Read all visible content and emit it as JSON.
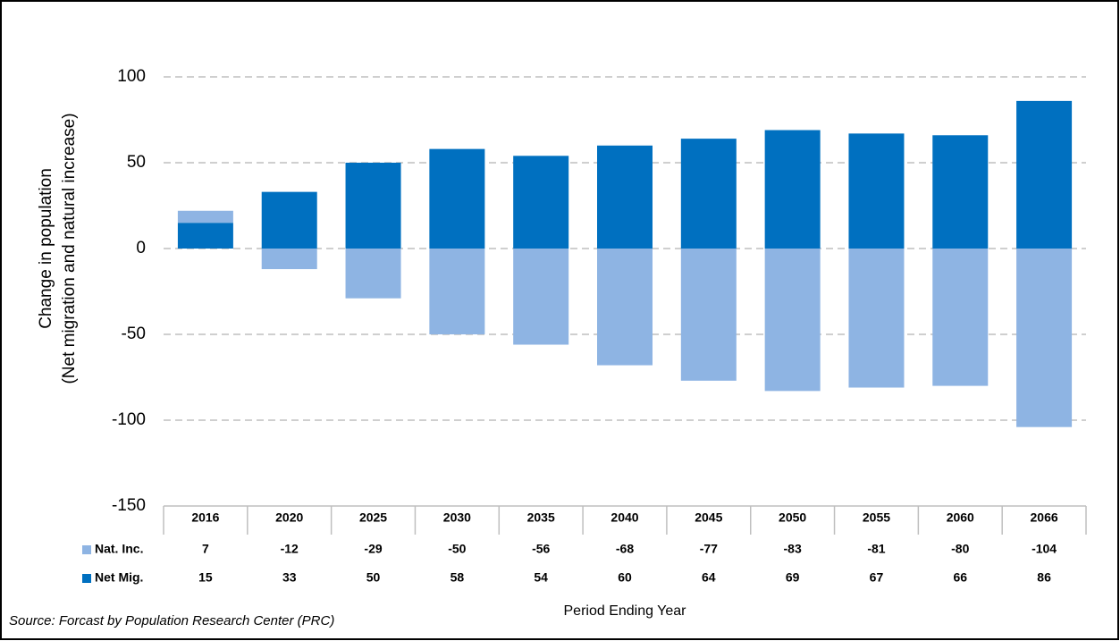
{
  "chart_data": {
    "type": "bar",
    "stacked": true,
    "y_label": [
      "Change in population",
      "(Net migration and natural increase)"
    ],
    "x_label": "Period Ending Year",
    "source": "Source: Forcast by Population Research Center (PRC)",
    "categories": [
      "2016",
      "2020",
      "2025",
      "2030",
      "2035",
      "2040",
      "2045",
      "2050",
      "2055",
      "2060",
      "2066"
    ],
    "series": [
      {
        "name": "Nat. Inc.",
        "color": "#8eb4e3",
        "values": [
          7,
          -12,
          -29,
          -50,
          -56,
          -68,
          -77,
          -83,
          -81,
          -80,
          -104
        ]
      },
      {
        "name": "Net Mig.",
        "color": "#0070c0",
        "values": [
          15,
          33,
          50,
          58,
          54,
          60,
          64,
          69,
          67,
          66,
          86
        ]
      }
    ],
    "ylim": [
      -150,
      100
    ],
    "yticks": [
      -150,
      -100,
      -50,
      0,
      50,
      100
    ],
    "grid": true,
    "data_table": true
  }
}
